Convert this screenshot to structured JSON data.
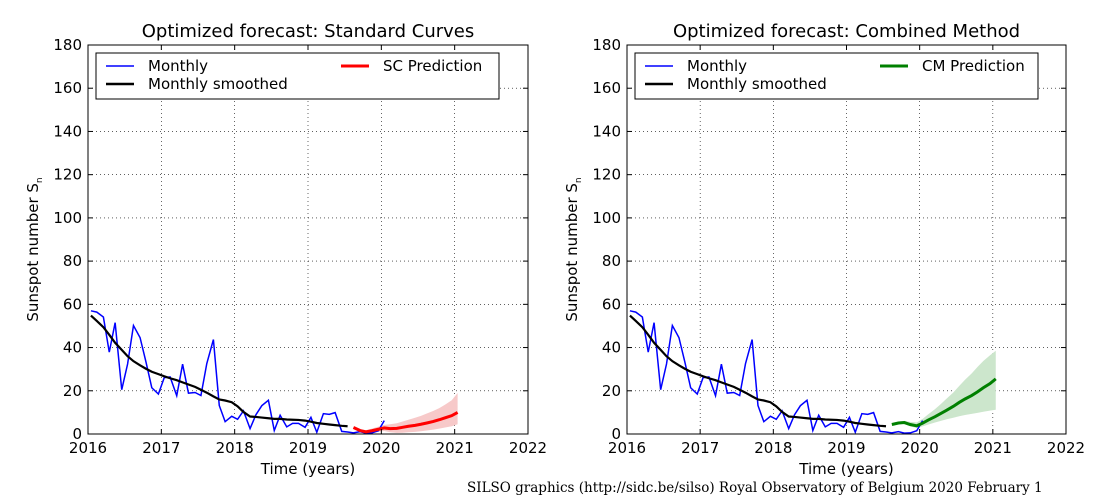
{
  "colors": {
    "monthly": "#0000ff",
    "smoothed": "#000000",
    "sc_prediction": "#ff0000",
    "sc_band": "#f7c9c9",
    "cm_prediction": "#008000",
    "cm_band": "#cce6cc"
  },
  "credit": "SILSO graphics (http://sidc.be/silso)  Royal Observatory of Belgium  2020 February 1",
  "chart_data": [
    {
      "type": "line",
      "title": "Optimized forecast: Standard Curves",
      "xlabel": "Time (years)",
      "ylabel": "Sunspot number S",
      "ylabel_sub": "n",
      "xlim": [
        2016,
        2022
      ],
      "ylim": [
        0,
        180
      ],
      "xticks": [
        "2016",
        "2017",
        "2018",
        "2019",
        "2020",
        "2021",
        "2022"
      ],
      "yticks": [
        "0",
        "20",
        "40",
        "60",
        "80",
        "100",
        "120",
        "140",
        "160",
        "180"
      ],
      "grid": true,
      "legend_position": "top",
      "legend": [
        "Monthly",
        "Monthly smoothed",
        "SC Prediction"
      ],
      "series": [
        {
          "name": "Monthly",
          "x": [
            2016.04,
            2016.12,
            2016.21,
            2016.29,
            2016.37,
            2016.46,
            2016.54,
            2016.62,
            2016.71,
            2016.79,
            2016.87,
            2016.96,
            2017.04,
            2017.12,
            2017.21,
            2017.29,
            2017.37,
            2017.46,
            2017.54,
            2017.62,
            2017.71,
            2017.79,
            2017.87,
            2017.96,
            2018.04,
            2018.12,
            2018.21,
            2018.29,
            2018.37,
            2018.46,
            2018.54,
            2018.62,
            2018.71,
            2018.79,
            2018.87,
            2018.96,
            2019.04,
            2019.12,
            2019.21,
            2019.29,
            2019.37,
            2019.46,
            2019.54,
            2019.62,
            2019.71,
            2019.79,
            2019.87,
            2019.96,
            2020.04
          ],
          "y": [
            57,
            56.4,
            54.1,
            37.9,
            51.5,
            20.5,
            32.4,
            50.2,
            44.6,
            33.4,
            21.4,
            18.5,
            26.1,
            26.4,
            17.7,
            32.3,
            18.9,
            19.2,
            17.8,
            32.6,
            43.7,
            13.2,
            5.7,
            8.2,
            6.8,
            10.7,
            2.5,
            8.9,
            13.1,
            15.6,
            1.6,
            8.7,
            3.3,
            4.9,
            4.9,
            3.1,
            7.7,
            0.8,
            9.4,
            9.1,
            9.9,
            1.2,
            0.9,
            0.5,
            1.1,
            0.4,
            0.5,
            1.5,
            6.2
          ]
        },
        {
          "name": "Monthly smoothed",
          "x": [
            2016.04,
            2016.12,
            2016.21,
            2016.29,
            2016.37,
            2016.46,
            2016.54,
            2016.62,
            2016.71,
            2016.79,
            2016.87,
            2016.96,
            2017.04,
            2017.12,
            2017.21,
            2017.29,
            2017.37,
            2017.46,
            2017.54,
            2017.62,
            2017.71,
            2017.79,
            2017.87,
            2017.96,
            2018.04,
            2018.12,
            2018.21,
            2018.29,
            2018.37,
            2018.46,
            2018.54,
            2018.62,
            2018.71,
            2018.79,
            2018.87,
            2018.96,
            2019.04,
            2019.12,
            2019.21,
            2019.29,
            2019.37,
            2019.46,
            2019.54
          ],
          "y": [
            54.8,
            52.3,
            49.4,
            45.9,
            42.2,
            38.9,
            36.0,
            33.7,
            31.8,
            30.2,
            28.8,
            27.7,
            26.7,
            25.8,
            24.9,
            23.9,
            22.9,
            21.8,
            20.5,
            19.1,
            17.4,
            16.0,
            15.5,
            14.7,
            12.8,
            10.2,
            8.1,
            7.9,
            7.6,
            7.3,
            7.0,
            7.0,
            6.7,
            6.6,
            6.5,
            6.2,
            5.7,
            5.1,
            4.7,
            4.4,
            4.1,
            3.8,
            3.6
          ]
        },
        {
          "name": "SC Prediction",
          "x": [
            2019.62,
            2019.71,
            2019.79,
            2019.87,
            2019.96,
            2020.04,
            2020.12,
            2020.21,
            2020.29,
            2020.37,
            2020.46,
            2020.54,
            2020.62,
            2020.71,
            2020.79,
            2020.87,
            2020.96,
            2021.04
          ],
          "y": [
            3.0,
            1.6,
            1.0,
            1.5,
            2.2,
            2.8,
            2.5,
            2.6,
            3.1,
            3.6,
            4.0,
            4.5,
            5.1,
            5.8,
            6.6,
            7.5,
            8.5,
            10.0
          ],
          "upper": [
            3.5,
            2.2,
            1.8,
            2.5,
            3.4,
            4.2,
            4.5,
            5.0,
            5.8,
            6.6,
            7.5,
            8.4,
            9.5,
            10.7,
            12.0,
            13.6,
            15.6,
            19.0
          ],
          "lower": [
            2.5,
            1.0,
            0.4,
            0.6,
            1.0,
            1.4,
            0.8,
            0.5,
            0.6,
            0.8,
            1.0,
            1.3,
            1.6,
            2.0,
            2.5,
            3.0,
            3.6,
            4.5
          ]
        }
      ]
    },
    {
      "type": "line",
      "title": "Optimized forecast: Combined Method",
      "xlabel": "Time (years)",
      "ylabel": "Sunspot number S",
      "ylabel_sub": "n",
      "xlim": [
        2016,
        2022
      ],
      "ylim": [
        0,
        180
      ],
      "xticks": [
        "2016",
        "2017",
        "2018",
        "2019",
        "2020",
        "2021",
        "2022"
      ],
      "yticks": [
        "0",
        "20",
        "40",
        "60",
        "80",
        "100",
        "120",
        "140",
        "160",
        "180"
      ],
      "grid": true,
      "legend_position": "top",
      "legend": [
        "Monthly",
        "Monthly smoothed",
        "CM Prediction"
      ],
      "series": [
        {
          "name": "Monthly",
          "x": [
            2016.04,
            2016.12,
            2016.21,
            2016.29,
            2016.37,
            2016.46,
            2016.54,
            2016.62,
            2016.71,
            2016.79,
            2016.87,
            2016.96,
            2017.04,
            2017.12,
            2017.21,
            2017.29,
            2017.37,
            2017.46,
            2017.54,
            2017.62,
            2017.71,
            2017.79,
            2017.87,
            2017.96,
            2018.04,
            2018.12,
            2018.21,
            2018.29,
            2018.37,
            2018.46,
            2018.54,
            2018.62,
            2018.71,
            2018.79,
            2018.87,
            2018.96,
            2019.04,
            2019.12,
            2019.21,
            2019.29,
            2019.37,
            2019.46,
            2019.54,
            2019.62,
            2019.71,
            2019.79,
            2019.87,
            2019.96,
            2020.04
          ],
          "y": [
            57,
            56.4,
            54.1,
            37.9,
            51.5,
            20.5,
            32.4,
            50.2,
            44.6,
            33.4,
            21.4,
            18.5,
            26.1,
            26.4,
            17.7,
            32.3,
            18.9,
            19.2,
            17.8,
            32.6,
            43.7,
            13.2,
            5.7,
            8.2,
            6.8,
            10.7,
            2.5,
            8.9,
            13.1,
            15.6,
            1.6,
            8.7,
            3.3,
            4.9,
            4.9,
            3.1,
            7.7,
            0.8,
            9.4,
            9.1,
            9.9,
            1.2,
            0.9,
            0.5,
            1.1,
            0.4,
            0.5,
            1.5,
            6.2
          ]
        },
        {
          "name": "Monthly smoothed",
          "x": [
            2016.04,
            2016.12,
            2016.21,
            2016.29,
            2016.37,
            2016.46,
            2016.54,
            2016.62,
            2016.71,
            2016.79,
            2016.87,
            2016.96,
            2017.04,
            2017.12,
            2017.21,
            2017.29,
            2017.37,
            2017.46,
            2017.54,
            2017.62,
            2017.71,
            2017.79,
            2017.87,
            2017.96,
            2018.04,
            2018.12,
            2018.21,
            2018.29,
            2018.37,
            2018.46,
            2018.54,
            2018.62,
            2018.71,
            2018.79,
            2018.87,
            2018.96,
            2019.04,
            2019.12,
            2019.21,
            2019.29,
            2019.37,
            2019.46,
            2019.54
          ],
          "y": [
            54.8,
            52.3,
            49.4,
            45.9,
            42.2,
            38.9,
            36.0,
            33.7,
            31.8,
            30.2,
            28.8,
            27.7,
            26.7,
            25.8,
            24.9,
            23.9,
            22.9,
            21.8,
            20.5,
            19.1,
            17.4,
            16.0,
            15.5,
            14.7,
            12.8,
            10.2,
            8.1,
            7.9,
            7.6,
            7.3,
            7.0,
            7.0,
            6.7,
            6.6,
            6.5,
            6.2,
            5.7,
            5.1,
            4.7,
            4.4,
            4.1,
            3.8,
            3.6
          ]
        },
        {
          "name": "CM Prediction",
          "x": [
            2019.62,
            2019.71,
            2019.79,
            2019.87,
            2019.96,
            2020.04,
            2020.12,
            2020.21,
            2020.29,
            2020.37,
            2020.46,
            2020.54,
            2020.62,
            2020.71,
            2020.79,
            2020.87,
            2020.96,
            2021.04
          ],
          "y": [
            4.4,
            5.1,
            5.3,
            4.4,
            3.8,
            5.0,
            6.5,
            8.0,
            9.5,
            11.0,
            12.8,
            14.6,
            16.2,
            17.8,
            19.5,
            21.4,
            23.3,
            25.5
          ],
          "upper": [
            4.9,
            5.7,
            6.1,
            5.6,
            5.4,
            7.0,
            9.2,
            11.5,
            13.9,
            16.4,
            19.2,
            22.2,
            25.1,
            28.0,
            31.0,
            33.8,
            36.4,
            38.5
          ],
          "lower": [
            3.9,
            4.5,
            4.6,
            3.5,
            2.8,
            3.5,
            4.4,
            5.3,
            6.1,
            6.8,
            7.5,
            8.2,
            8.8,
            9.3,
            9.8,
            10.3,
            10.8,
            11.2
          ]
        }
      ]
    }
  ]
}
